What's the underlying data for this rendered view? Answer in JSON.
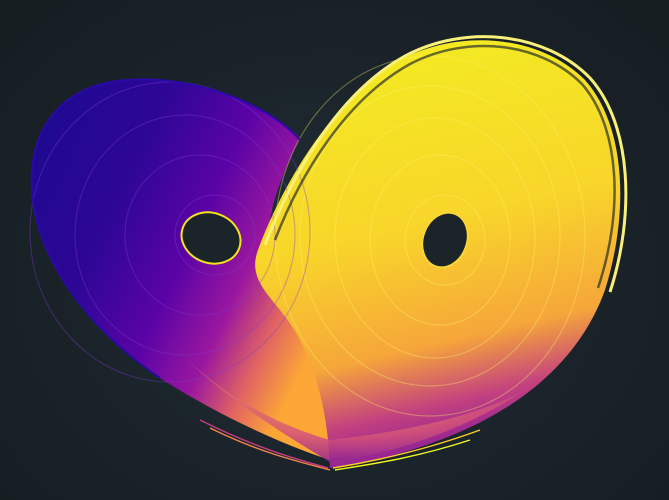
{
  "scene": {
    "subject": "lorenz-attractor",
    "background_color": "#1b2428",
    "palette": [
      "#0d0887",
      "#3b049a",
      "#6a00a8",
      "#9c179e",
      "#c33d80",
      "#e16462",
      "#f2844b",
      "#fca636",
      "#fcce25",
      "#f0f921"
    ],
    "left_lobe_color": "#2a0a9e",
    "right_lobe_color": "#f3e21f",
    "hole_color": "#1b2428"
  }
}
